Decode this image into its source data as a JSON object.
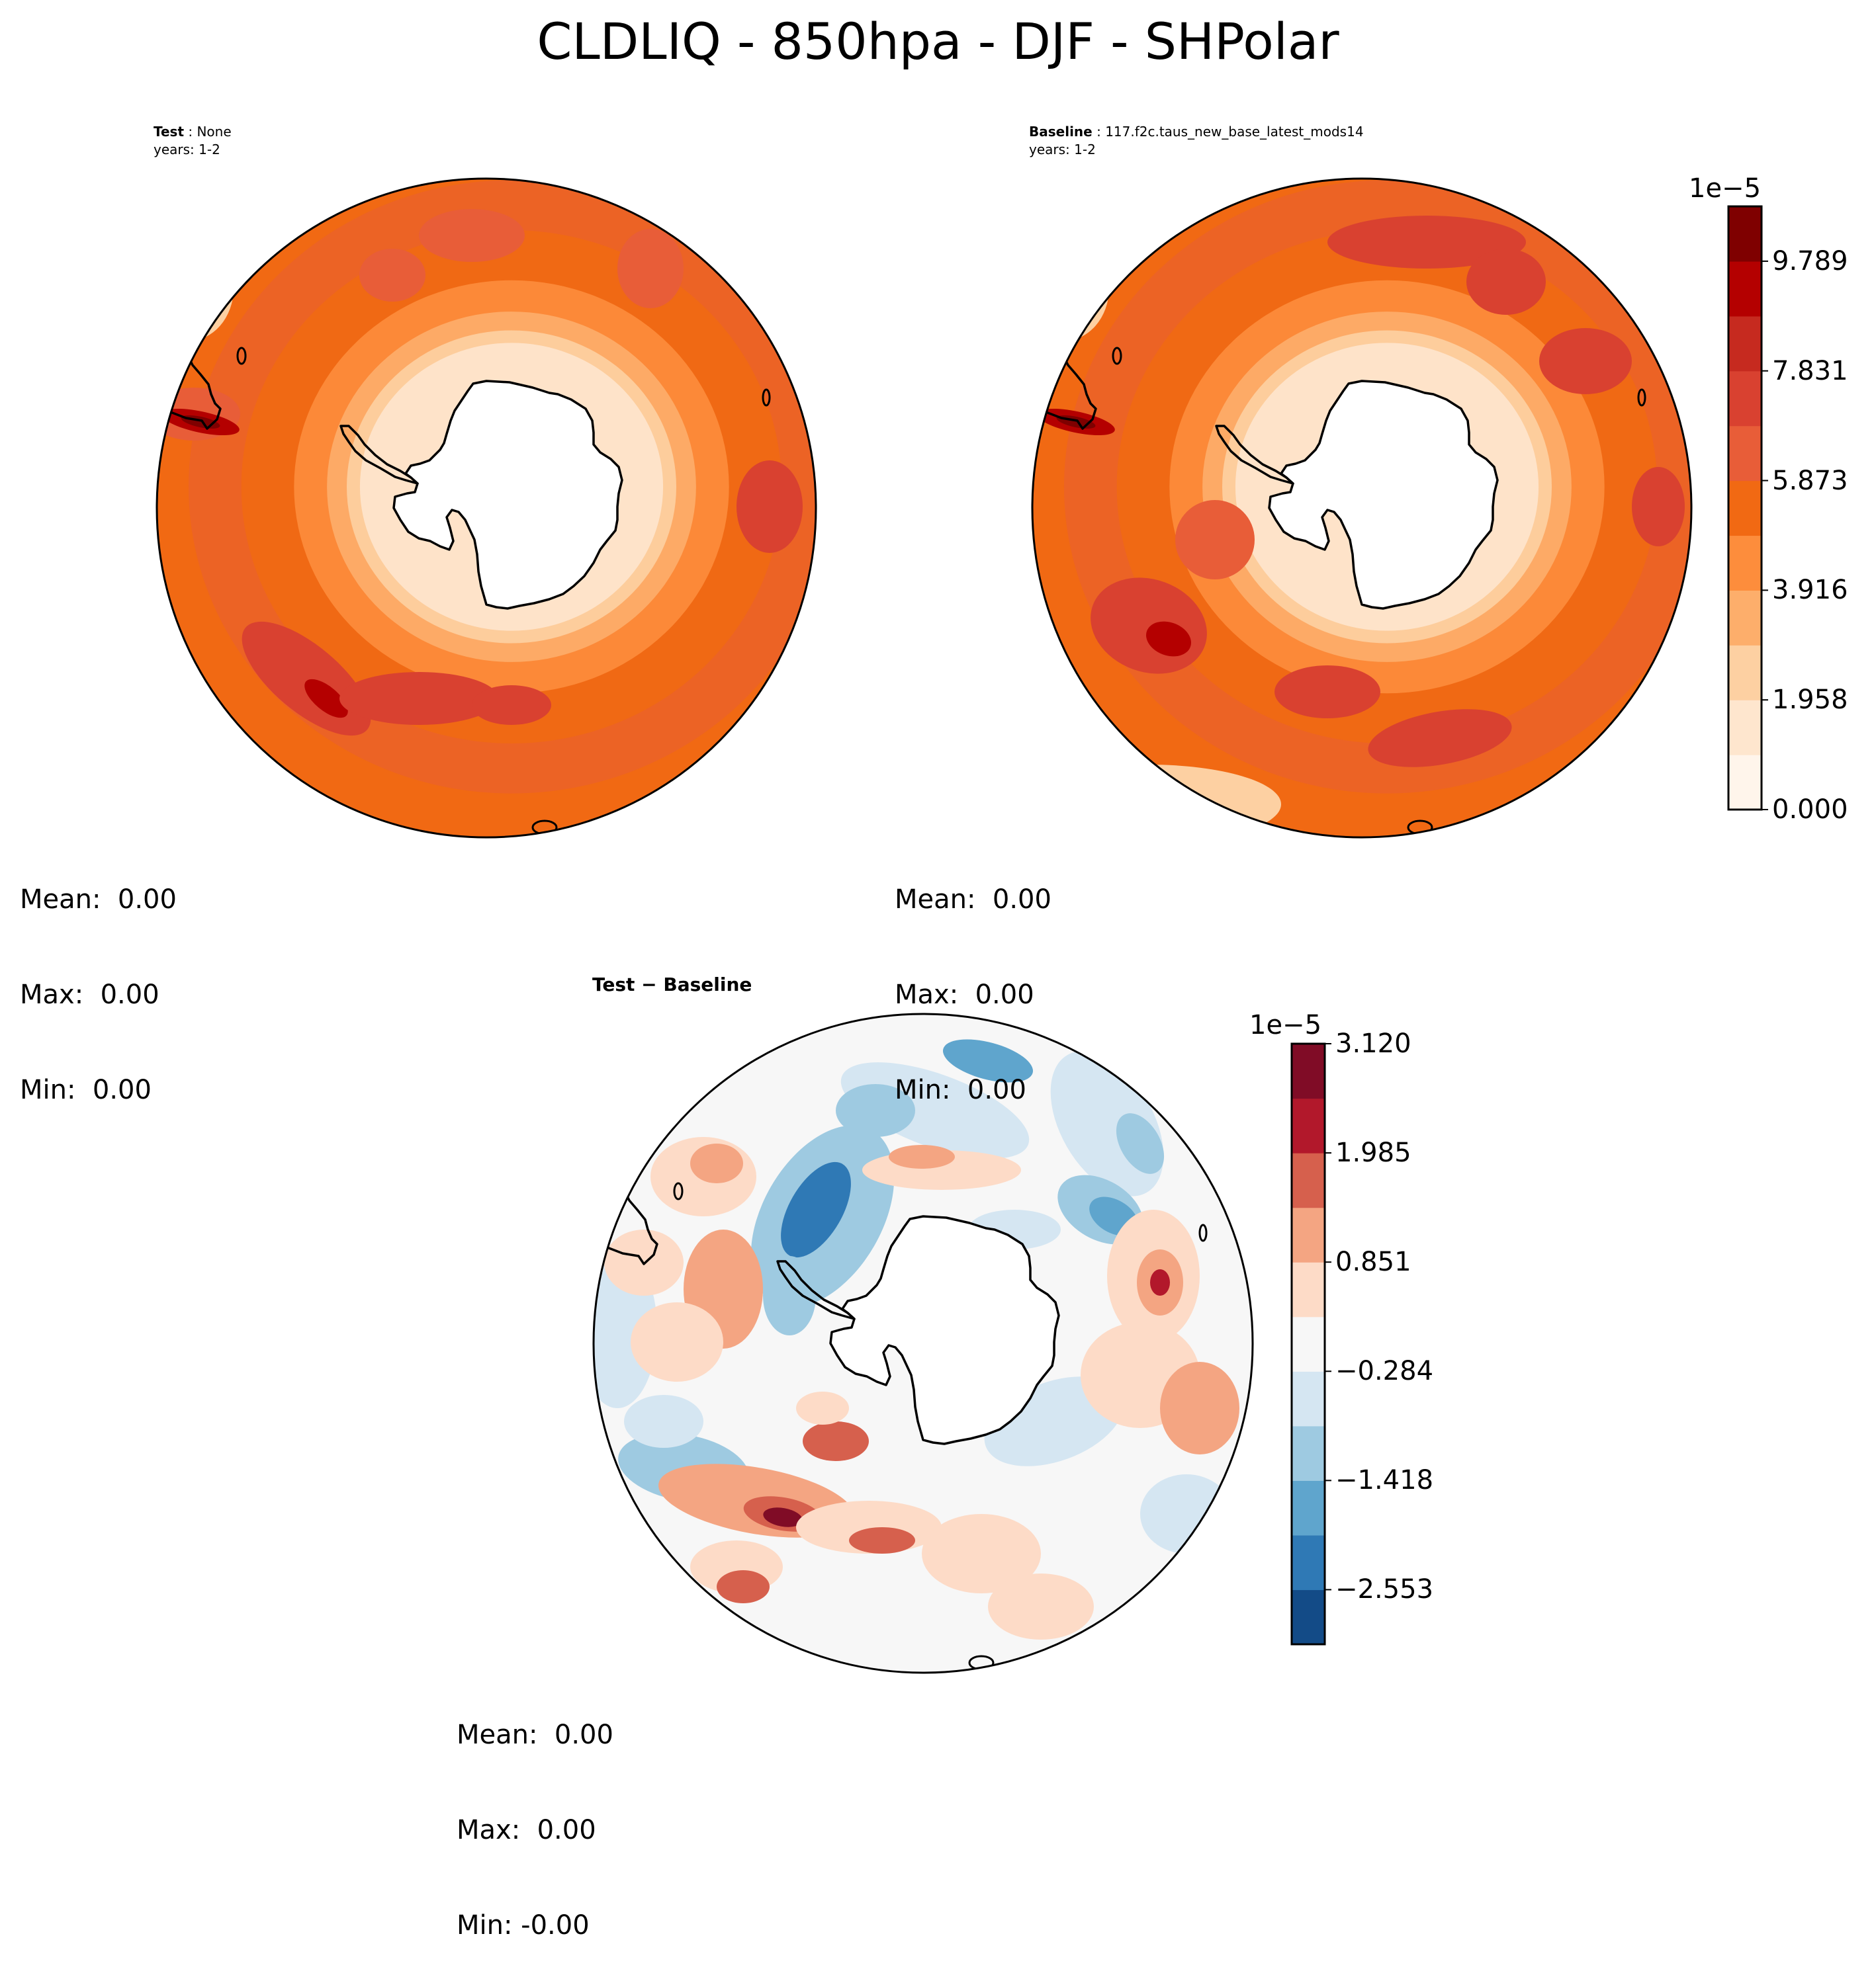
{
  "title": "CLDLIQ - 850hpa - DJF - SHPolar",
  "panels": {
    "test": {
      "label_bold": "Test",
      "label_text": " : None",
      "years": "years: 1-2",
      "stats": {
        "mean": "Mean:  0.00",
        "max": "Max:  0.00",
        "min": "Min:  0.00"
      }
    },
    "baseline": {
      "label_bold": "Baseline",
      "label_text": " : 117.f2c.taus_new_base_latest_mods14",
      "years": "years: 1-2",
      "stats": {
        "mean": "Mean:  0.00",
        "max": "Max:  0.00",
        "min": "Min:  0.00"
      }
    },
    "diff": {
      "title": "Test − Baseline",
      "stats": {
        "mean": "Mean:  0.00",
        "max": "Max:  0.00",
        "min": "Min: -0.00"
      }
    }
  },
  "colorbars": {
    "main": {
      "exponent": "1e−5",
      "ticks": [
        "0.000",
        "1.958",
        "3.916",
        "5.873",
        "7.831",
        "9.789"
      ],
      "colors": [
        "#fff5eb",
        "#fee6ce",
        "#fdd0a2",
        "#fdae6b",
        "#fd8d3c",
        "#f16913",
        "#e85d38",
        "#d94130",
        "#c62a1f",
        "#b40000",
        "#7f0000"
      ]
    },
    "diff": {
      "exponent": "1e−5",
      "ticks": [
        "−2.553",
        "−1.418",
        "−0.284",
        "0.851",
        "1.985",
        "3.120"
      ],
      "colors": [
        "#134b87",
        "#2f79b5",
        "#5fa5cd",
        "#9ecae1",
        "#d5e6f2",
        "#f7f7f7",
        "#fddbc7",
        "#f4a582",
        "#d6604d",
        "#b2182b",
        "#800c26"
      ]
    }
  },
  "chart_data": [
    {
      "type": "heatmap",
      "projection": "south-polar-stereographic",
      "region": "SHPolar",
      "variable": "CLDLIQ",
      "level": "850hpa",
      "season": "DJF",
      "panel": "Test",
      "colorbar_ticks": [
        0.0,
        1.958,
        3.916,
        5.873,
        7.831,
        9.789
      ],
      "colorbar_scale": "1e-5",
      "mean": 0.0,
      "max": 0.0,
      "min": 0.0
    },
    {
      "type": "heatmap",
      "projection": "south-polar-stereographic",
      "region": "SHPolar",
      "variable": "CLDLIQ",
      "level": "850hpa",
      "season": "DJF",
      "panel": "Baseline",
      "colorbar_ticks": [
        0.0,
        1.958,
        3.916,
        5.873,
        7.831,
        9.789
      ],
      "colorbar_scale": "1e-5",
      "mean": 0.0,
      "max": 0.0,
      "min": 0.0
    },
    {
      "type": "heatmap",
      "projection": "south-polar-stereographic",
      "region": "SHPolar",
      "panel": "Test - Baseline",
      "colorbar_ticks": [
        -2.553,
        -1.418,
        -0.284,
        0.851,
        1.985,
        3.12
      ],
      "colorbar_scale": "1e-5",
      "mean": 0.0,
      "max": 0.0,
      "min": -0.0
    }
  ]
}
